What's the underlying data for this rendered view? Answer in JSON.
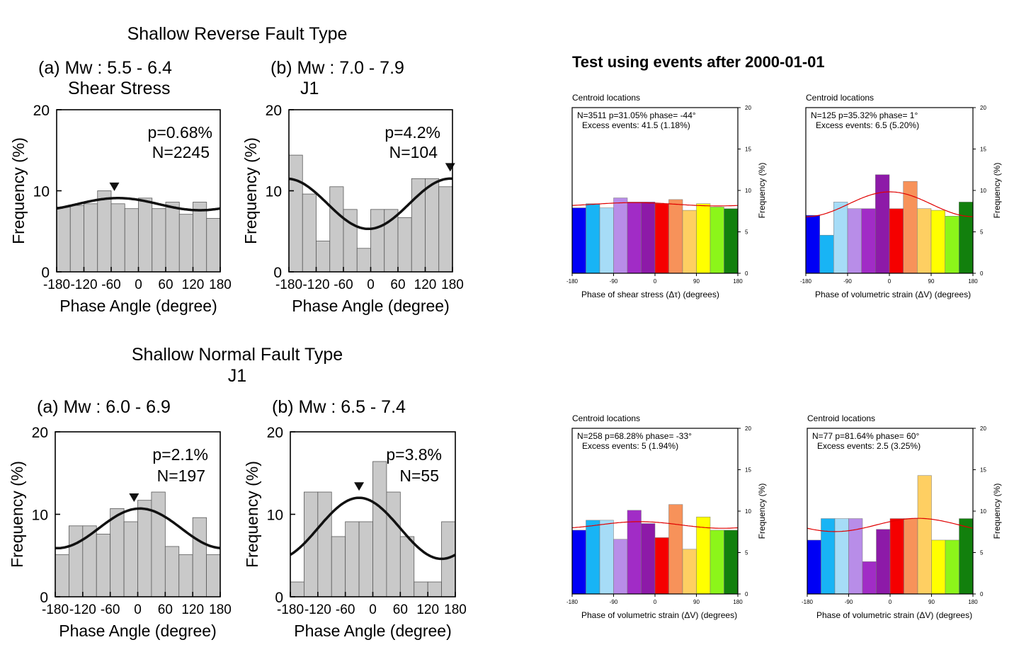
{
  "left": {
    "reverse_title": "Shallow Reverse Fault Type",
    "normal_title_1": "Shallow Normal Fault Type",
    "normal_title_2": "J1",
    "ylabel": "Frequency (%)",
    "xlabel": "Phase Angle (degree)",
    "xticks": [
      "-180",
      "-120",
      "-60",
      "0",
      "60",
      "120",
      "180"
    ],
    "yticks": [
      "0",
      "10",
      "20"
    ]
  },
  "right": {
    "title": "Test using events after 2000-01-01",
    "panel_header": "Centroid locations",
    "ylabel": "Frequency (%)",
    "xticks": [
      "-180",
      "-90",
      "0",
      "90",
      "180"
    ],
    "yticks": [
      "0",
      "5",
      "10",
      "15",
      "20"
    ],
    "bar_colors": [
      "#0000f5",
      "#18b4f5",
      "#a6dcf7",
      "#b88de8",
      "#a12cc6",
      "#8d1aa8",
      "#f50000",
      "#f7925a",
      "#fecf62",
      "#ffff00",
      "#8cf51a",
      "#12800d"
    ]
  },
  "chart_data": [
    {
      "type": "bar",
      "panel": "(a) Mw : 5.5 - 6.4",
      "subtitle": "Shear Stress",
      "x": [
        -165,
        -135,
        -105,
        -75,
        -45,
        -15,
        15,
        45,
        75,
        105,
        135,
        165
      ],
      "values": [
        8.0,
        8.2,
        8.4,
        10.0,
        8.4,
        7.8,
        9.1,
        7.8,
        8.6,
        7.1,
        8.6,
        6.6
      ],
      "fit_mean": 8.35,
      "fit_amp": 0.75,
      "fit_phase": -45,
      "peak_marker": -53,
      "annot_p": "p=0.68%",
      "annot_n": "N=2245",
      "xlim": [
        -180,
        180
      ],
      "ylim": [
        0,
        20
      ],
      "xlabel": "Phase Angle (degree)",
      "ylabel": "Frequency (%)"
    },
    {
      "type": "bar",
      "panel": "(b) Mw : 7.0 - 7.9",
      "subtitle": "J1",
      "x": [
        -165,
        -135,
        -105,
        -75,
        -45,
        -15,
        15,
        45,
        75,
        105,
        135,
        165
      ],
      "values": [
        14.4,
        9.6,
        3.8,
        10.5,
        7.7,
        2.9,
        7.7,
        7.7,
        6.7,
        11.5,
        11.5,
        10.5
      ],
      "fit_mean": 8.4,
      "fit_amp": 3.1,
      "fit_phase": 175,
      "peak_marker": 175,
      "annot_p": "p=4.2%",
      "annot_n": "N=104",
      "xlim": [
        -180,
        180
      ],
      "ylim": [
        0,
        20
      ],
      "xlabel": "Phase Angle (degree)",
      "ylabel": "Frequency (%)"
    },
    {
      "type": "bar",
      "panel": "(a) Mw : 6.0 - 6.9",
      "subtitle": "",
      "x": [
        -165,
        -135,
        -105,
        -75,
        -45,
        -15,
        15,
        45,
        75,
        105,
        135,
        165
      ],
      "values": [
        5.1,
        8.6,
        8.6,
        7.6,
        10.7,
        9.1,
        11.7,
        12.7,
        6.1,
        5.1,
        9.6,
        5.1
      ],
      "fit_mean": 8.3,
      "fit_amp": 2.4,
      "fit_phase": 5,
      "peak_marker": -8,
      "annot_p": "p=2.1%",
      "annot_n": "N=197",
      "xlim": [
        -180,
        180
      ],
      "ylim": [
        0,
        20
      ],
      "xlabel": "Phase Angle (degree)",
      "ylabel": "Frequency (%)"
    },
    {
      "type": "bar",
      "panel": "(b) Mw : 6.5 - 7.4",
      "subtitle": "",
      "x": [
        -165,
        -135,
        -105,
        -75,
        -45,
        -15,
        15,
        45,
        75,
        105,
        135,
        165
      ],
      "values": [
        1.8,
        12.7,
        12.7,
        7.3,
        9.1,
        9.1,
        16.4,
        12.7,
        7.3,
        1.8,
        1.8,
        9.1
      ],
      "fit_mean": 8.3,
      "fit_amp": 3.7,
      "fit_phase": -30,
      "peak_marker": -30,
      "annot_p": "p=3.8%",
      "annot_n": "N=55",
      "xlim": [
        -180,
        180
      ],
      "ylim": [
        0,
        20
      ],
      "xlabel": "Phase Angle (degree)",
      "ylabel": "Frequency (%)"
    },
    {
      "type": "bar",
      "panel": "Centroid locations",
      "x": [
        -165,
        -135,
        -105,
        -75,
        -45,
        -15,
        15,
        45,
        75,
        105,
        135,
        165
      ],
      "values": [
        7.9,
        8.4,
        7.9,
        9.1,
        8.6,
        8.6,
        8.4,
        8.9,
        7.6,
        8.4,
        8.0,
        7.8
      ],
      "fit_mean": 8.33,
      "fit_amp": 0.2,
      "fit_phase": -44,
      "annot_1": "N=3511   p=31.05%   phase= -44°",
      "annot_2": "Excess events: 41.5 (1.18%)",
      "xlim": [
        -180,
        180
      ],
      "ylim": [
        0,
        20
      ],
      "xlabel": "Phase of shear stress (Δτ) (degrees)",
      "ylabel": "Frequency (%)"
    },
    {
      "type": "bar",
      "panel": "Centroid locations",
      "x": [
        -165,
        -135,
        -105,
        -75,
        -45,
        -15,
        15,
        45,
        75,
        105,
        135,
        165
      ],
      "values": [
        7.0,
        4.6,
        8.6,
        7.8,
        7.8,
        11.9,
        7.8,
        11.1,
        7.8,
        7.6,
        6.9,
        8.6
      ],
      "fit_mean": 8.33,
      "fit_amp": 1.5,
      "fit_phase": 1,
      "annot_1": "N=125   p=35.32%   phase= 1°",
      "annot_2": "Excess events: 6.5 (5.20%)",
      "xlim": [
        -180,
        180
      ],
      "ylim": [
        0,
        20
      ],
      "xlabel": "Phase of volumetric strain (ΔV) (degrees)",
      "ylabel": "Frequency (%)"
    },
    {
      "type": "bar",
      "panel": "Centroid locations",
      "x": [
        -165,
        -135,
        -105,
        -75,
        -45,
        -15,
        15,
        45,
        75,
        105,
        135,
        165
      ],
      "values": [
        7.7,
        8.9,
        8.9,
        6.6,
        10.1,
        8.5,
        6.8,
        10.8,
        5.4,
        9.3,
        7.7,
        7.7
      ],
      "fit_mean": 8.33,
      "fit_amp": 0.4,
      "fit_phase": -33,
      "annot_1": "N=258   p=68.28%   phase= -33°",
      "annot_2": "Excess events: 5 (1.94%)",
      "xlim": [
        -180,
        180
      ],
      "ylim": [
        0,
        20
      ],
      "xlabel": "Phase of volumetric strain (ΔV) (degrees)",
      "ylabel": "Frequency (%)"
    },
    {
      "type": "bar",
      "panel": "Centroid locations",
      "x": [
        -165,
        -135,
        -105,
        -75,
        -45,
        -15,
        15,
        45,
        75,
        105,
        135,
        165
      ],
      "values": [
        6.5,
        9.1,
        9.1,
        9.1,
        3.9,
        7.8,
        9.1,
        9.1,
        14.3,
        6.5,
        6.5,
        9.1
      ],
      "fit_mean": 8.33,
      "fit_amp": 0.8,
      "fit_phase": 60,
      "annot_1": "N=77   p=81.64%   phase= 60°",
      "annot_2": "Excess events: 2.5 (3.25%)",
      "xlim": [
        -180,
        180
      ],
      "ylim": [
        0,
        20
      ],
      "xlabel": "Phase of volumetric strain (ΔV) (degrees)",
      "ylabel": "Frequency (%)"
    }
  ]
}
